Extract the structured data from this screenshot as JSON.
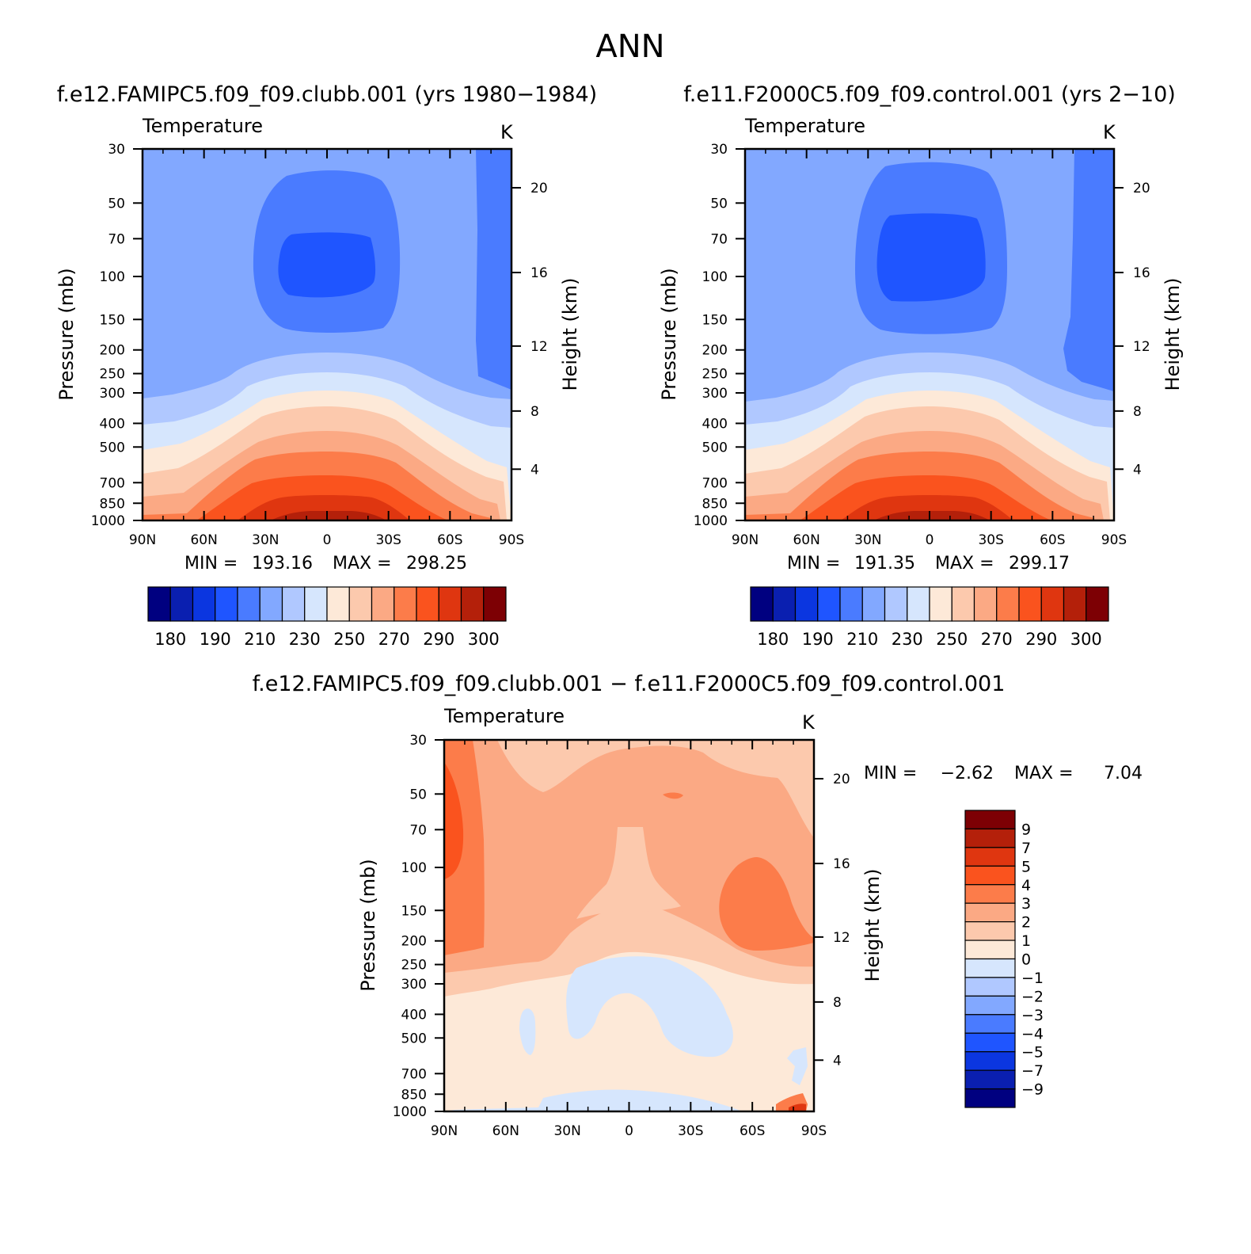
{
  "figure_title": "ANN",
  "chart_data": [
    {
      "type": "heatmap",
      "subtitle": "f.e12.FAMIPC5.f09_f09.clubb.001 (yrs 1980−1984)",
      "title_left": "Temperature",
      "title_right": "K",
      "ylabel": "Pressure (mb)",
      "ylabel_right": "Height (km)",
      "x_ticks": [
        "90N",
        "60N",
        "30N",
        "0",
        "30S",
        "60S",
        "90S"
      ],
      "y_ticks": [
        "30",
        "50",
        "70",
        "100",
        "150",
        "200",
        "250",
        "300",
        "400",
        "500",
        "700",
        "850",
        "1000"
      ],
      "y_right_ticks": [
        "20",
        "16",
        "12",
        "8",
        "4"
      ],
      "min_label": "MIN =",
      "min": "193.16",
      "max_label": "MAX =",
      "max": "298.25",
      "contour_levels": [
        180,
        185,
        190,
        200,
        210,
        220,
        230,
        240,
        250,
        260,
        270,
        280,
        290,
        295,
        300
      ],
      "colorbar_labels": [
        "180",
        "190",
        "210",
        "230",
        "250",
        "270",
        "290",
        "300"
      ]
    },
    {
      "type": "heatmap",
      "subtitle": "f.e11.F2000C5.f09_f09.control.001 (yrs 2−10)",
      "title_left": "Temperature",
      "title_right": "K",
      "ylabel": "Pressure (mb)",
      "ylabel_right": "Height (km)",
      "x_ticks": [
        "90N",
        "60N",
        "30N",
        "0",
        "30S",
        "60S",
        "90S"
      ],
      "y_ticks": [
        "30",
        "50",
        "70",
        "100",
        "150",
        "200",
        "250",
        "300",
        "400",
        "500",
        "700",
        "850",
        "1000"
      ],
      "y_right_ticks": [
        "20",
        "16",
        "12",
        "8",
        "4"
      ],
      "min_label": "MIN =",
      "min": "191.35",
      "max_label": "MAX =",
      "max": "299.17",
      "contour_levels": [
        180,
        185,
        190,
        200,
        210,
        220,
        230,
        240,
        250,
        260,
        270,
        280,
        290,
        295,
        300
      ],
      "colorbar_labels": [
        "180",
        "190",
        "210",
        "230",
        "250",
        "270",
        "290",
        "300"
      ]
    },
    {
      "type": "heatmap",
      "subtitle": "f.e12.FAMIPC5.f09_f09.clubb.001 − f.e11.F2000C5.f09_f09.control.001",
      "title_left": "Temperature",
      "title_right": "K",
      "ylabel": "Pressure (mb)",
      "ylabel_right": "Height (km)",
      "x_ticks": [
        "90N",
        "60N",
        "30N",
        "0",
        "30S",
        "60S",
        "90S"
      ],
      "y_ticks": [
        "30",
        "50",
        "70",
        "100",
        "150",
        "200",
        "250",
        "300",
        "400",
        "500",
        "700",
        "850",
        "1000"
      ],
      "y_right_ticks": [
        "20",
        "16",
        "12",
        "8",
        "4"
      ],
      "min_label": "MIN =",
      "min": "−2.62",
      "max_label": "MAX =",
      "max": "7.04",
      "contour_levels": [
        -9,
        -7,
        -5,
        -4,
        -3,
        -2,
        -1,
        0,
        1,
        2,
        3,
        4,
        5,
        7,
        9
      ],
      "colorbar_labels": [
        "9",
        "7",
        "5",
        "4",
        "3",
        "2",
        "1",
        "0",
        "−1",
        "−2",
        "−3",
        "−4",
        "−5",
        "−7",
        "−9"
      ]
    }
  ],
  "colors": {
    "scale": [
      "#000080",
      "#0a1fb0",
      "#0b36e0",
      "#1f55ff",
      "#4a7bff",
      "#82a8ff",
      "#b0c8ff",
      "#d6e6fd",
      "#fde9d8",
      "#fcc9ad",
      "#fba984",
      "#fc7c4a",
      "#fa531e",
      "#df3610",
      "#b4200a",
      "#7d0004"
    ]
  }
}
